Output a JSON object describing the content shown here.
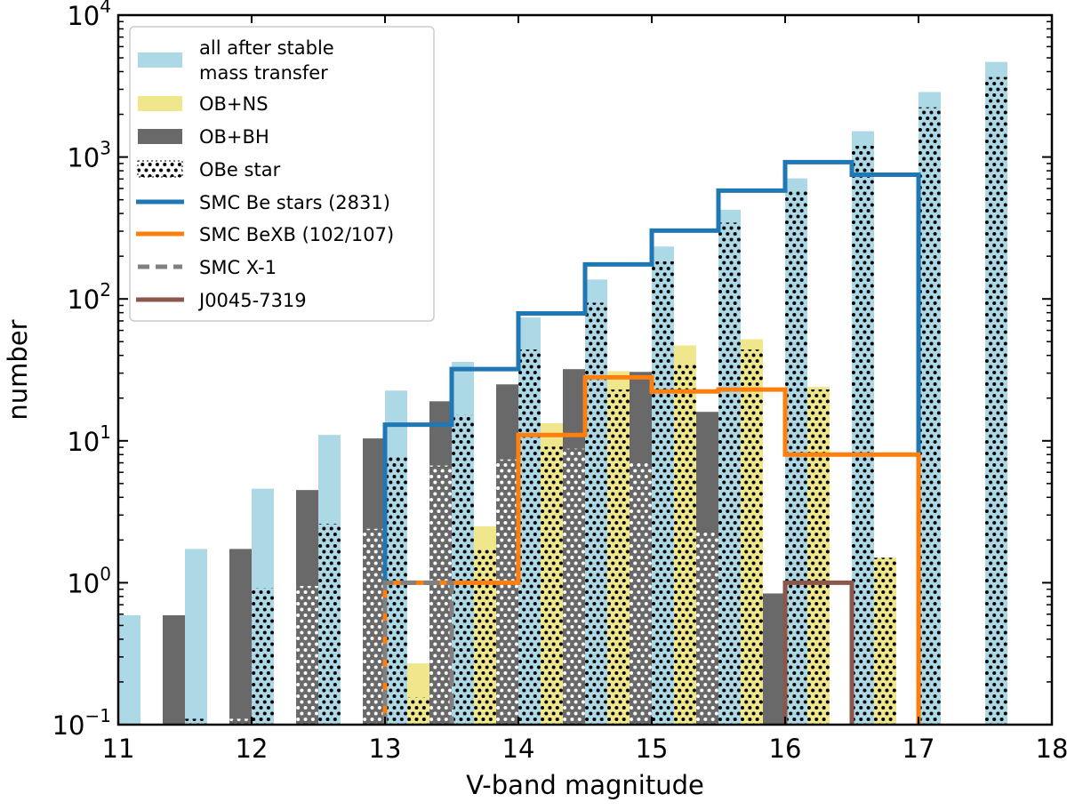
{
  "chart_data": {
    "type": "bar",
    "xlabel": "V-band magnitude",
    "ylabel": "number",
    "xlim": [
      11,
      18
    ],
    "ylim": [
      0.1,
      10000
    ],
    "yscale": "log",
    "grid": false,
    "legend_placement": "top-left",
    "xticklabels": [
      "11",
      "12",
      "13",
      "14",
      "15",
      "16",
      "17",
      "18"
    ],
    "xticks": [
      11,
      12,
      13,
      14,
      15,
      16,
      17,
      18
    ],
    "yticks": [
      {
        "value": 0.1,
        "base": "10",
        "exp": "−1"
      },
      {
        "value": 1,
        "base": "10",
        "exp": "0"
      },
      {
        "value": 10,
        "base": "10",
        "exp": "1"
      },
      {
        "value": 100,
        "base": "10",
        "exp": "2"
      },
      {
        "value": 1000,
        "base": "10",
        "exp": "3"
      },
      {
        "value": 10000,
        "base": "10",
        "exp": "4"
      }
    ],
    "bins": [
      11,
      11.5,
      12,
      12.5,
      13,
      13.5,
      14,
      14.5,
      15,
      15.5,
      16,
      16.5,
      17,
      17.5
    ],
    "bar_series": [
      {
        "name": "OB+BH",
        "color": "#696969",
        "dot_color": "#ffffff",
        "offset": -1,
        "values": [
          null,
          0.59,
          1.73,
          4.5,
          10.4,
          19,
          25,
          32,
          30.6,
          16,
          0.84,
          null,
          null,
          null
        ],
        "obe_values": [
          null,
          null,
          0.11,
          0.95,
          2.4,
          6.7,
          7.4,
          8.8,
          7.2,
          2.3,
          null,
          null,
          null,
          null
        ]
      },
      {
        "name": "all after stable mass transfer",
        "color": "#add8e6",
        "dot_color": "#000000",
        "offset": 0,
        "values": [
          0.59,
          1.73,
          4.6,
          11,
          22.6,
          36,
          74,
          137,
          234,
          425,
          707,
          1520,
          2870,
          4680
        ],
        "obe_values": [
          null,
          0.11,
          0.92,
          2.6,
          7.9,
          15.3,
          44,
          94,
          184,
          345,
          580,
          1200,
          2240,
          3660
        ]
      },
      {
        "name": "OB+NS",
        "color": "#f0e68c",
        "dot_color": "#000000",
        "offset": 1,
        "values": [
          null,
          null,
          null,
          null,
          0.27,
          2.5,
          13.3,
          31,
          47,
          52,
          24,
          1.5,
          null,
          null
        ],
        "obe_values": [
          null,
          null,
          null,
          null,
          0.155,
          1.7,
          9.1,
          23,
          35,
          44,
          23,
          1.5,
          null,
          null
        ]
      }
    ],
    "step_series": [
      {
        "name": "SMC Be stars (2831)",
        "color": "#1f77b4",
        "dash": false,
        "edges": [
          13,
          13.5,
          14,
          14.5,
          15,
          15.5,
          16,
          16.5,
          17
        ],
        "values": [
          13,
          32,
          79,
          175,
          303,
          580,
          920,
          750
        ]
      },
      {
        "name": "SMC BeXB (102/107)",
        "color": "#ff7f0e",
        "dash": false,
        "edges": [
          13,
          14,
          14.5,
          15,
          15.5,
          16,
          17
        ],
        "values": [
          1,
          11,
          28,
          22.3,
          23,
          8
        ]
      },
      {
        "name": "SMC X-1",
        "color": "#808080",
        "dash": true,
        "edges": [
          13,
          13.5
        ],
        "values": [
          1
        ]
      },
      {
        "name": "J0045-7319",
        "color": "#8c564b",
        "dash": false,
        "edges": [
          16,
          16.5
        ],
        "values": [
          1
        ]
      }
    ],
    "legend": [
      {
        "kind": "patch",
        "color": "#add8e6",
        "lines": [
          "all after stable",
          "mass transfer"
        ]
      },
      {
        "kind": "patch",
        "color": "#f0e68c",
        "lines": [
          "OB+NS"
        ]
      },
      {
        "kind": "patch",
        "color": "#696969",
        "lines": [
          "OB+BH"
        ]
      },
      {
        "kind": "hatch",
        "color": "#ffffff",
        "lines": [
          "OBe star"
        ]
      },
      {
        "kind": "line",
        "color": "#1f77b4",
        "lines": [
          "SMC Be stars (2831)"
        ]
      },
      {
        "kind": "line",
        "color": "#ff7f0e",
        "lines": [
          "SMC BeXB (102/107)"
        ]
      },
      {
        "kind": "dash",
        "color": "#808080",
        "lines": [
          "SMC X-1"
        ]
      },
      {
        "kind": "line",
        "color": "#8c564b",
        "lines": [
          "J0045-7319"
        ]
      }
    ]
  }
}
